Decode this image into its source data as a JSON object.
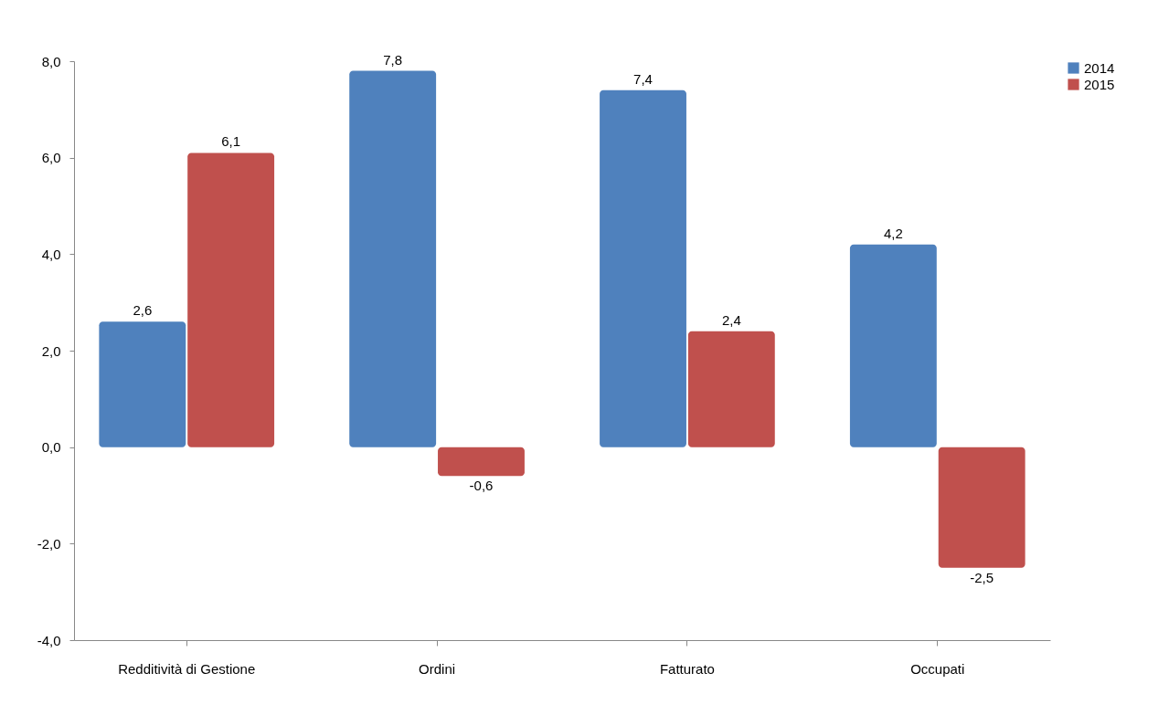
{
  "chart_data": {
    "type": "bar",
    "categories": [
      "Redditività di Gestione",
      "Ordini",
      "Fatturato",
      "Occupati"
    ],
    "series": [
      {
        "name": "2014",
        "color": "#4f81bd",
        "values": [
          2.6,
          7.8,
          7.4,
          4.2
        ],
        "value_labels": [
          "2,6",
          "7,8",
          "7,4",
          "4,2"
        ]
      },
      {
        "name": "2015",
        "color": "#c0504d",
        "values": [
          6.1,
          -0.6,
          2.4,
          -2.5
        ],
        "value_labels": [
          "6,1",
          "-0,6",
          "2,4",
          "-2,5"
        ]
      }
    ],
    "ylim": [
      -4,
      8
    ],
    "yticks": [
      {
        "value": -4,
        "label": "-4,0"
      },
      {
        "value": -2,
        "label": "-2,0"
      },
      {
        "value": 0,
        "label": "0,0"
      },
      {
        "value": 2,
        "label": "2,0"
      },
      {
        "value": 4,
        "label": "4,0"
      },
      {
        "value": 6,
        "label": "6,0"
      },
      {
        "value": 8,
        "label": "8,0"
      }
    ],
    "grid": false,
    "legend": "right"
  }
}
